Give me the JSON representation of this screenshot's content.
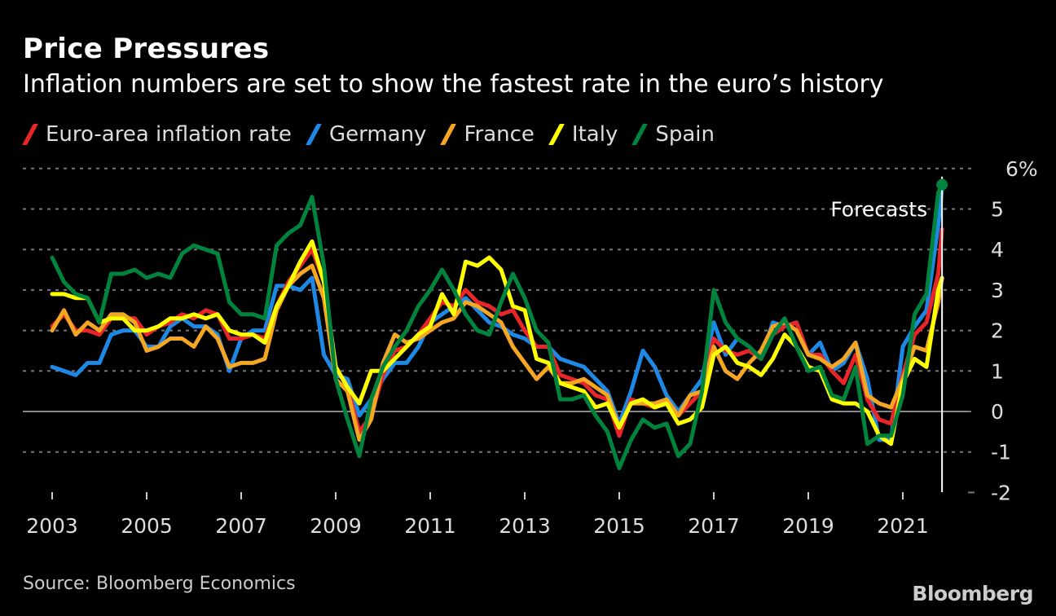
{
  "header": {
    "title": "Price Pressures",
    "subtitle": "Inflation numbers are set to show the fastest rate in the euro’s history"
  },
  "footer": {
    "source": "Source: Bloomberg Economics",
    "brand": "Bloomberg"
  },
  "chart_data": {
    "type": "line",
    "title": "Price Pressures",
    "subtitle": "Inflation numbers are set to show the fastest rate in the euro’s history",
    "xlabel": "",
    "ylabel": "",
    "xlim": [
      2002.4,
      2023.2
    ],
    "ylim": [
      -2,
      6
    ],
    "grid": true,
    "legend_position": "top-left",
    "x_ticks": [
      2003,
      2005,
      2007,
      2009,
      2011,
      2013,
      2015,
      2017,
      2019,
      2021
    ],
    "x_tick_labels": [
      "2003",
      "2005",
      "2007",
      "2009",
      "2011",
      "2013",
      "2015",
      "2017",
      "2019",
      "2021"
    ],
    "y_ticks": [
      -2,
      -1,
      0,
      1,
      2,
      3,
      4,
      5,
      6
    ],
    "y_tick_labels": [
      "-2",
      "-1",
      "0",
      "1",
      "2",
      "3",
      "4",
      "5",
      "6%"
    ],
    "annotations": [
      {
        "text": "Forecasts",
        "x": 2021.83,
        "type": "vertical-line",
        "label_side": "left",
        "label_y": 4.9
      }
    ],
    "endpoint_marker": {
      "series": "Spain",
      "x": 2021.83,
      "y": 5.6
    },
    "x": [
      2003.0,
      2003.25,
      2003.5,
      2003.75,
      2004.0,
      2004.25,
      2004.5,
      2004.75,
      2005.0,
      2005.25,
      2005.5,
      2005.75,
      2006.0,
      2006.25,
      2006.5,
      2006.75,
      2007.0,
      2007.25,
      2007.5,
      2007.75,
      2008.0,
      2008.25,
      2008.5,
      2008.75,
      2009.0,
      2009.25,
      2009.5,
      2009.75,
      2010.0,
      2010.25,
      2010.5,
      2010.75,
      2011.0,
      2011.25,
      2011.5,
      2011.75,
      2012.0,
      2012.25,
      2012.5,
      2012.75,
      2013.0,
      2013.25,
      2013.5,
      2013.75,
      2014.0,
      2014.25,
      2014.5,
      2014.75,
      2015.0,
      2015.25,
      2015.5,
      2015.75,
      2016.0,
      2016.25,
      2016.5,
      2016.75,
      2017.0,
      2017.25,
      2017.5,
      2017.75,
      2018.0,
      2018.25,
      2018.5,
      2018.75,
      2019.0,
      2019.25,
      2019.5,
      2019.75,
      2020.0,
      2020.25,
      2020.5,
      2020.75,
      2021.0,
      2021.25,
      2021.5,
      2021.75,
      2021.83
    ],
    "series": [
      {
        "name": "Euro-area inflation rate",
        "color": "#e8262a",
        "values": [
          2.1,
          2.4,
          2.0,
          2.0,
          1.9,
          2.3,
          2.3,
          2.3,
          1.9,
          2.1,
          2.2,
          2.4,
          2.3,
          2.5,
          2.4,
          1.8,
          1.8,
          1.9,
          1.8,
          2.6,
          3.2,
          3.6,
          4.0,
          3.2,
          1.1,
          0.6,
          -0.5,
          -0.1,
          0.9,
          1.5,
          1.6,
          1.9,
          2.3,
          2.7,
          2.6,
          3.0,
          2.7,
          2.6,
          2.4,
          2.5,
          2.0,
          1.6,
          1.6,
          0.9,
          0.8,
          0.7,
          0.4,
          0.3,
          -0.6,
          0.3,
          0.2,
          0.1,
          0.3,
          -0.1,
          0.2,
          0.5,
          1.8,
          1.5,
          1.4,
          1.5,
          1.3,
          1.9,
          2.1,
          2.2,
          1.4,
          1.4,
          1.0,
          0.7,
          1.4,
          0.3,
          -0.2,
          -0.3,
          0.9,
          1.9,
          2.2,
          3.4,
          4.5
        ]
      },
      {
        "name": "Germany",
        "color": "#1e88e5",
        "values": [
          1.1,
          1.0,
          0.9,
          1.2,
          1.2,
          1.9,
          2.0,
          2.0,
          1.6,
          1.6,
          2.1,
          2.3,
          2.1,
          2.1,
          1.9,
          1.0,
          1.8,
          2.0,
          2.0,
          3.1,
          3.1,
          3.0,
          3.3,
          1.4,
          0.9,
          0.8,
          -0.1,
          0.3,
          0.8,
          1.2,
          1.2,
          1.6,
          2.2,
          2.4,
          2.6,
          2.8,
          2.5,
          2.2,
          2.1,
          1.9,
          1.8,
          1.6,
          1.6,
          1.3,
          1.2,
          1.1,
          0.8,
          0.5,
          -0.3,
          0.5,
          1.5,
          1.1,
          0.4,
          0.0,
          0.4,
          0.8,
          2.2,
          1.4,
          1.8,
          1.6,
          1.3,
          2.2,
          2.1,
          2.2,
          1.4,
          1.7,
          1.0,
          1.2,
          1.7,
          0.8,
          -0.7,
          -0.7,
          1.6,
          2.1,
          2.5,
          4.6,
          5.5
        ]
      },
      {
        "name": "France",
        "color": "#f5a623",
        "values": [
          2.0,
          2.5,
          1.9,
          2.2,
          2.0,
          2.4,
          2.4,
          2.2,
          1.5,
          1.6,
          1.8,
          1.8,
          1.6,
          2.1,
          1.8,
          1.1,
          1.2,
          1.2,
          1.3,
          2.5,
          3.1,
          3.4,
          3.6,
          2.8,
          0.8,
          0.5,
          -0.7,
          -0.2,
          1.2,
          1.9,
          1.7,
          1.8,
          2.0,
          2.2,
          2.3,
          2.7,
          2.6,
          2.4,
          2.2,
          1.6,
          1.2,
          0.8,
          1.1,
          0.7,
          0.7,
          0.8,
          0.6,
          0.4,
          -0.4,
          0.2,
          0.2,
          0.2,
          0.3,
          -0.1,
          0.4,
          0.5,
          1.6,
          1.0,
          0.8,
          1.2,
          1.5,
          2.1,
          2.2,
          2.0,
          1.4,
          1.3,
          1.1,
          1.3,
          1.7,
          0.4,
          0.2,
          0.1,
          0.8,
          1.6,
          1.5,
          2.7,
          3.3
        ]
      },
      {
        "name": "Italy",
        "color": "#ffff00",
        "values": [
          2.9,
          2.9,
          2.8,
          2.8,
          2.2,
          2.3,
          2.3,
          2.0,
          2.0,
          2.1,
          2.3,
          2.3,
          2.4,
          2.3,
          2.4,
          2.0,
          1.9,
          1.9,
          1.7,
          2.6,
          3.1,
          3.7,
          4.2,
          3.2,
          1.1,
          0.6,
          0.2,
          1.0,
          1.0,
          1.3,
          1.6,
          1.9,
          2.1,
          2.9,
          2.4,
          3.7,
          3.6,
          3.8,
          3.5,
          2.6,
          2.5,
          1.3,
          1.2,
          0.7,
          0.6,
          0.5,
          0.1,
          0.2,
          -0.4,
          0.2,
          0.3,
          0.1,
          0.2,
          -0.3,
          -0.2,
          0.1,
          1.4,
          1.6,
          1.2,
          1.1,
          0.9,
          1.3,
          1.9,
          1.6,
          1.1,
          1.0,
          0.3,
          0.2,
          0.2,
          0.0,
          -0.6,
          -0.8,
          0.7,
          1.3,
          1.1,
          3.0,
          3.3
        ]
      },
      {
        "name": "Spain",
        "color": "#00843d",
        "values": [
          3.8,
          3.2,
          2.9,
          2.8,
          2.2,
          3.4,
          3.4,
          3.5,
          3.3,
          3.4,
          3.3,
          3.9,
          4.1,
          4.0,
          3.9,
          2.7,
          2.4,
          2.4,
          2.3,
          4.1,
          4.4,
          4.6,
          5.3,
          3.6,
          0.8,
          -0.2,
          -1.1,
          0.3,
          1.1,
          1.6,
          2.0,
          2.6,
          3.0,
          3.5,
          3.0,
          2.4,
          2.0,
          1.9,
          2.7,
          3.4,
          2.8,
          2.0,
          1.7,
          0.3,
          0.3,
          0.4,
          -0.1,
          -0.5,
          -1.4,
          -0.7,
          -0.2,
          -0.4,
          -0.3,
          -1.1,
          -0.8,
          0.5,
          3.0,
          2.2,
          1.8,
          1.6,
          1.3,
          1.9,
          2.3,
          1.6,
          1.0,
          1.1,
          0.4,
          0.3,
          1.1,
          -0.8,
          -0.6,
          -0.6,
          0.4,
          2.4,
          2.9,
          5.4,
          5.6
        ]
      }
    ]
  }
}
